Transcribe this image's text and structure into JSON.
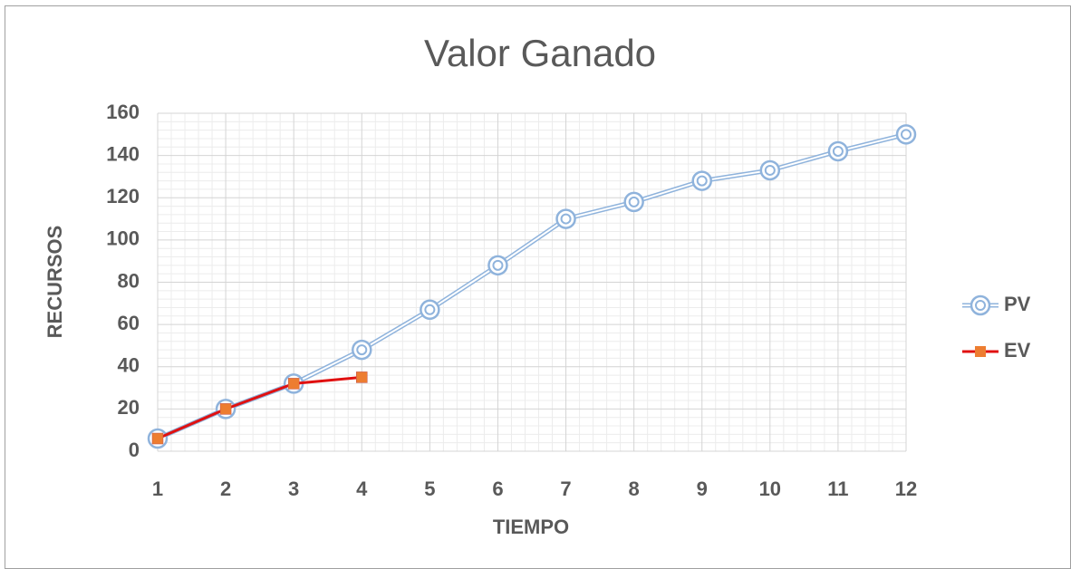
{
  "chart_data": {
    "type": "line",
    "title": "Valor Ganado",
    "x_label": "TIEMPO",
    "y_label": "RECURSOS",
    "x": [
      1,
      2,
      3,
      4,
      5,
      6,
      7,
      8,
      9,
      10,
      11,
      12
    ],
    "xlim": [
      1,
      12
    ],
    "xticks": [
      1,
      2,
      3,
      4,
      5,
      6,
      7,
      8,
      9,
      10,
      11,
      12
    ],
    "ylim": [
      0,
      160
    ],
    "yticks": [
      0,
      20,
      40,
      60,
      80,
      100,
      120,
      140,
      160
    ],
    "grid": true,
    "minor_grid": true,
    "legend": "right",
    "series": [
      {
        "name": "PV",
        "color": "#8fb3dc",
        "values": [
          6,
          20,
          32,
          48,
          67,
          88,
          110,
          118,
          128,
          133,
          142,
          150
        ]
      },
      {
        "name": "EV",
        "color": "#e01010",
        "marker_color": "#ed7d31",
        "values": [
          6,
          20,
          32,
          35,
          null,
          null,
          null,
          null,
          null,
          null,
          null,
          null
        ]
      }
    ]
  }
}
